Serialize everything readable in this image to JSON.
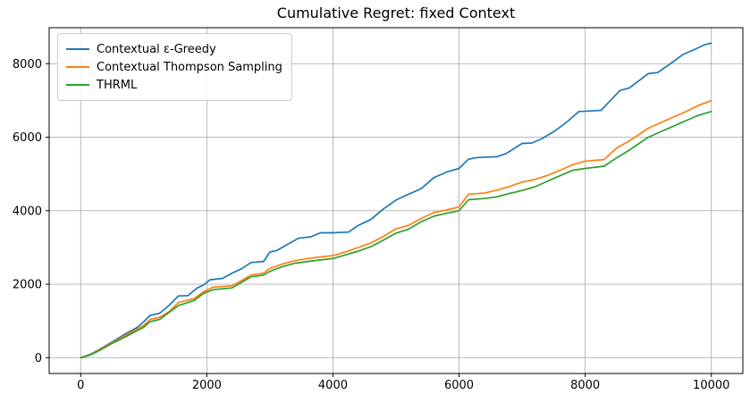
{
  "figure": {
    "title": "Cumulative Regret: fixed Context"
  },
  "chart_data": {
    "type": "line",
    "title": "Cumulative Regret: fixed Context",
    "xlabel": "",
    "ylabel": "",
    "xlim": [
      -500,
      10500
    ],
    "ylim": [
      -430,
      8980
    ],
    "x_ticks": [
      0,
      2000,
      4000,
      6000,
      8000,
      10000
    ],
    "y_ticks": [
      0,
      2000,
      4000,
      6000,
      8000
    ],
    "grid": true,
    "grid_color": "#b0b0b0",
    "spine_color": "#000000",
    "legend_position": "upper-left",
    "series": [
      {
        "name": "Contextual ε-Greedy",
        "color": "#1f77b4",
        "x": [
          0,
          150,
          300,
          500,
          700,
          900,
          1000,
          1100,
          1250,
          1400,
          1550,
          1700,
          1850,
          1950,
          2050,
          2250,
          2400,
          2550,
          2700,
          2900,
          3000,
          3100,
          3300,
          3450,
          3650,
          3800,
          4000,
          4250,
          4400,
          4600,
          4800,
          5000,
          5200,
          5400,
          5600,
          5800,
          6000,
          6150,
          6300,
          6600,
          6750,
          7000,
          7150,
          7300,
          7500,
          7700,
          7900,
          8250,
          8400,
          8550,
          8700,
          8900,
          9000,
          9150,
          9350,
          9550,
          9750,
          9900,
          10000
        ],
        "y": [
          0,
          90,
          230,
          430,
          640,
          830,
          980,
          1150,
          1210,
          1420,
          1680,
          1690,
          1900,
          1980,
          2120,
          2160,
          2300,
          2420,
          2590,
          2620,
          2880,
          2910,
          3100,
          3250,
          3290,
          3400,
          3400,
          3420,
          3600,
          3760,
          4050,
          4290,
          4450,
          4600,
          4900,
          5050,
          5150,
          5400,
          5450,
          5470,
          5560,
          5830,
          5840,
          5950,
          6150,
          6400,
          6700,
          6730,
          7000,
          7270,
          7340,
          7600,
          7730,
          7760,
          8000,
          8250,
          8400,
          8520,
          8560
        ]
      },
      {
        "name": "Contextual Thompson Sampling",
        "color": "#ff7f0e",
        "x": [
          0,
          150,
          300,
          500,
          700,
          900,
          1000,
          1100,
          1250,
          1400,
          1550,
          1800,
          1950,
          2100,
          2400,
          2550,
          2700,
          2900,
          3000,
          3200,
          3400,
          3600,
          3800,
          4000,
          4200,
          4400,
          4600,
          4800,
          5000,
          5200,
          5400,
          5600,
          5800,
          6000,
          6150,
          6400,
          6600,
          6800,
          7000,
          7200,
          7400,
          7600,
          7800,
          8000,
          8300,
          8500,
          8700,
          9000,
          9200,
          9400,
          9600,
          9800,
          10000
        ],
        "y": [
          0,
          80,
          220,
          410,
          600,
          780,
          880,
          1040,
          1100,
          1250,
          1500,
          1610,
          1800,
          1920,
          1960,
          2100,
          2250,
          2300,
          2430,
          2550,
          2640,
          2700,
          2740,
          2780,
          2880,
          3000,
          3120,
          3300,
          3510,
          3600,
          3790,
          3950,
          4020,
          4100,
          4450,
          4480,
          4560,
          4660,
          4780,
          4850,
          4960,
          5100,
          5250,
          5350,
          5390,
          5710,
          5900,
          6245,
          6400,
          6550,
          6700,
          6870,
          6990
        ]
      },
      {
        "name": "THRML",
        "color": "#2ca02c",
        "x": [
          0,
          150,
          300,
          500,
          700,
          900,
          1000,
          1100,
          1250,
          1400,
          1550,
          1800,
          1950,
          2100,
          2400,
          2550,
          2700,
          2900,
          3000,
          3200,
          3400,
          3600,
          3800,
          4000,
          4200,
          4400,
          4600,
          4800,
          5000,
          5200,
          5400,
          5600,
          5800,
          6000,
          6150,
          6400,
          6600,
          6800,
          7000,
          7200,
          7400,
          7600,
          7800,
          8000,
          8300,
          8500,
          8700,
          9000,
          9200,
          9400,
          9600,
          9800,
          10000
        ],
        "y": [
          0,
          70,
          200,
          390,
          560,
          740,
          830,
          980,
          1040,
          1230,
          1420,
          1560,
          1750,
          1850,
          1900,
          2050,
          2200,
          2250,
          2350,
          2480,
          2570,
          2620,
          2660,
          2700,
          2800,
          2900,
          3020,
          3200,
          3390,
          3500,
          3700,
          3850,
          3930,
          4000,
          4300,
          4330,
          4380,
          4470,
          4550,
          4650,
          4800,
          4950,
          5100,
          5150,
          5210,
          5440,
          5650,
          6000,
          6150,
          6300,
          6450,
          6600,
          6700
        ]
      }
    ]
  }
}
